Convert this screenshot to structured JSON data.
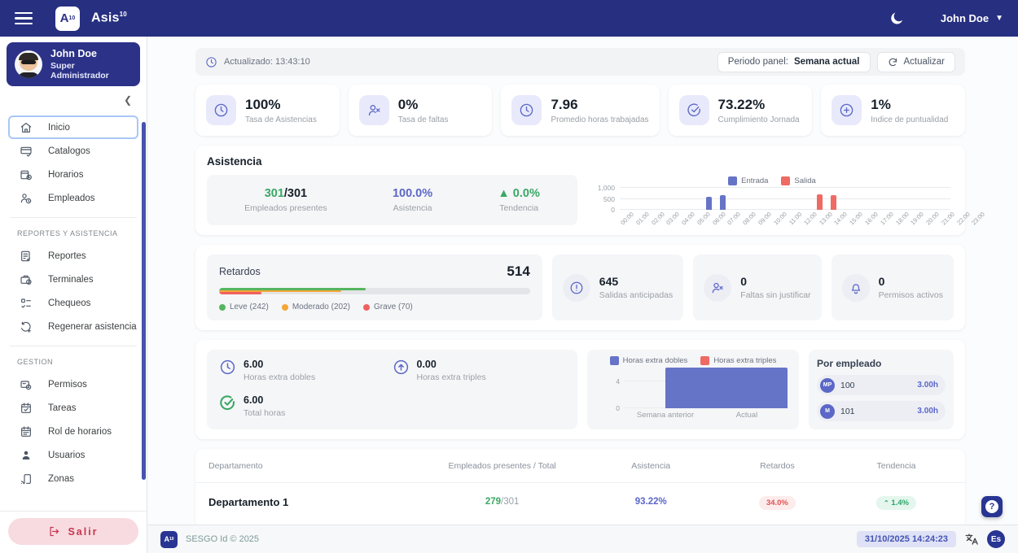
{
  "navbar": {
    "logo_letter": "A",
    "logo_sup": "10",
    "brand": "Asis",
    "brand_sup": "10",
    "user_name": "John Doe"
  },
  "sidebar": {
    "user": {
      "name": "John Doe",
      "role": "Super Administrador"
    },
    "sections": [
      {
        "label": "",
        "items": [
          {
            "label": "Inicio"
          },
          {
            "label": "Catalogos"
          },
          {
            "label": "Horarios"
          },
          {
            "label": "Empleados"
          }
        ]
      },
      {
        "label": "REPORTES Y ASISTENCIA",
        "items": [
          {
            "label": "Reportes"
          },
          {
            "label": "Terminales"
          },
          {
            "label": "Chequeos"
          },
          {
            "label": "Regenerar asistencia"
          }
        ]
      },
      {
        "label": "GESTION",
        "items": [
          {
            "label": "Permisos"
          },
          {
            "label": "Tareas"
          },
          {
            "label": "Rol de horarios"
          },
          {
            "label": "Usuarios"
          },
          {
            "label": "Zonas"
          }
        ]
      }
    ],
    "logout_label": "Salir"
  },
  "topbar": {
    "updated": "Actualizado: 13:43:10",
    "period_prefix": "Periodo panel: ",
    "period_value": "Semana actual",
    "refresh_label": "Actualizar"
  },
  "kpis": [
    {
      "value": "100%",
      "label": "Tasa de Asistencias"
    },
    {
      "value": "0%",
      "label": "Tasa de faltas"
    },
    {
      "value": "7.96",
      "label": "Promedio horas trabajadas"
    },
    {
      "value": "73.22%",
      "label": "Cumplimiento Jornada"
    },
    {
      "value": "1%",
      "label": "Indice de puntualidad"
    }
  ],
  "asistencia": {
    "title": "Asistencia",
    "presentes": "301",
    "presentes_total": "/301",
    "presentes_label": "Empleados presentes",
    "porcentaje": "100.0%",
    "porcentaje_label": "Asistencia",
    "tendencia": "▲ 0.0%",
    "tendencia_label": "Tendencia"
  },
  "retardos": {
    "title": "Retardos",
    "total": "514",
    "segments": [
      {
        "label": "Leve (242)",
        "value": 242,
        "color": "#57b560"
      },
      {
        "label": "Moderado (202)",
        "value": 202,
        "color": "#f6a635"
      },
      {
        "label": "Grave (70)",
        "value": 70,
        "color": "#ef6060"
      }
    ]
  },
  "mini_stats": [
    {
      "value": "645",
      "label": "Salidas anticipadas"
    },
    {
      "value": "0",
      "label": "Faltas sin justificar"
    },
    {
      "value": "0",
      "label": "Permisos activos"
    }
  ],
  "hours": {
    "dobles": "6.00",
    "dobles_label": "Horas extra dobles",
    "triples": "0.00",
    "triples_label": "Horas extra triples",
    "total": "6.00",
    "total_label": "Total horas"
  },
  "por_empleado": {
    "title": "Por empleado",
    "rows": [
      {
        "initials": "MP",
        "id": "100",
        "hours": "3.00h"
      },
      {
        "initials": "M",
        "id": "101",
        "hours": "3.00h"
      }
    ]
  },
  "table": {
    "headers": [
      "Departamento",
      "Empleados presentes / Total",
      "Asistencia",
      "Retardos",
      "Tendencia"
    ],
    "rows": [
      {
        "departamento": "Departamento 1",
        "presentes": "279",
        "total": "/301",
        "asistencia": "93.22%",
        "retardos": "34.0%",
        "tendencia": "1.4%"
      }
    ]
  },
  "footer": {
    "logo_letter": "A",
    "logo_sup": "10",
    "copyright": "SESGO Id © 2025",
    "datetime": "31/10/2025 14:24:23",
    "lang": "Es"
  },
  "help_label": "?",
  "chart_data": [
    {
      "name": "asistencia_por_hora",
      "type": "bar",
      "categories": [
        "00:00",
        "01:00",
        "02:00",
        "03:00",
        "04:00",
        "05:00",
        "06:00",
        "07:00",
        "08:00",
        "09:00",
        "10:00",
        "11:00",
        "12:00",
        "13:00",
        "14:00",
        "15:00",
        "16:00",
        "17:00",
        "18:00",
        "19:00",
        "20:00",
        "21:00",
        "22:00",
        "23:00"
      ],
      "series": [
        {
          "name": "Entrada",
          "color": "#6674c7",
          "values": [
            0,
            0,
            0,
            0,
            0,
            0,
            600,
            650,
            0,
            0,
            0,
            0,
            0,
            0,
            0,
            0,
            0,
            0,
            0,
            0,
            0,
            0,
            0,
            0
          ]
        },
        {
          "name": "Salida",
          "color": "#ee6a63",
          "values": [
            0,
            0,
            0,
            0,
            0,
            0,
            0,
            0,
            0,
            0,
            0,
            0,
            0,
            0,
            700,
            650,
            0,
            0,
            0,
            0,
            0,
            0,
            0,
            0
          ]
        }
      ],
      "ylim": [
        0,
        1000
      ],
      "yticks": [
        0,
        500,
        1000
      ],
      "yticklabels": [
        "0",
        "500",
        "1,000"
      ],
      "legend_position": "top"
    },
    {
      "name": "horas_extra",
      "type": "bar",
      "categories": [
        "Semana anterior",
        "Actual"
      ],
      "series": [
        {
          "name": "Horas extra dobles",
          "color": "#6674c7",
          "values": [
            0,
            6
          ]
        },
        {
          "name": "Horas extra triples",
          "color": "#ee6a63",
          "values": [
            0,
            0
          ]
        }
      ],
      "ylim": [
        0,
        6
      ],
      "yticks": [
        0,
        4
      ],
      "yticklabels": [
        "0",
        "4"
      ],
      "legend_position": "top"
    }
  ]
}
